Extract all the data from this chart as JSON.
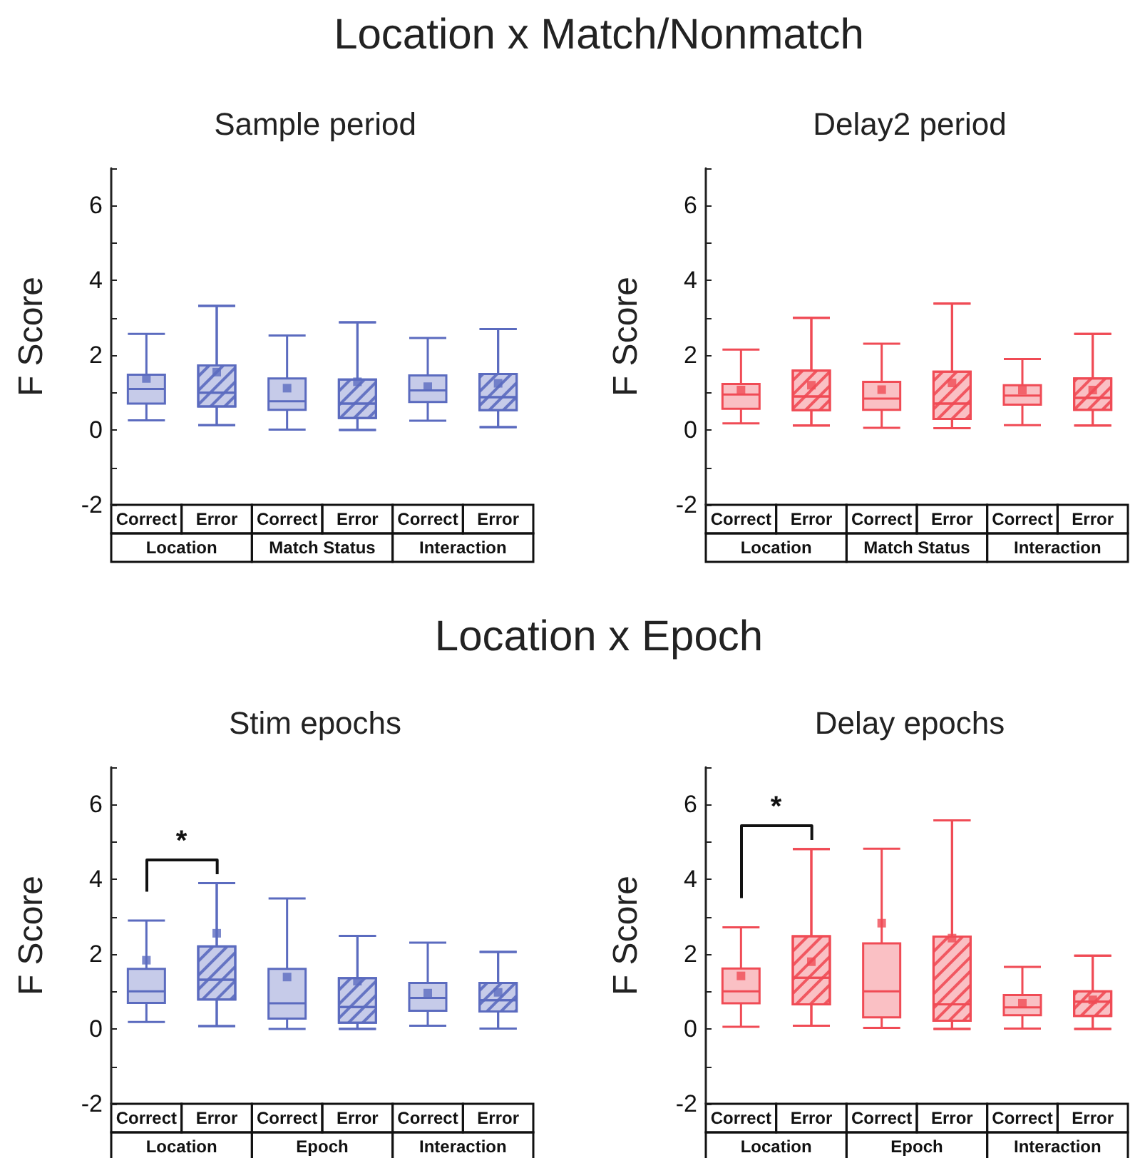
{
  "chart_data": [
    {
      "type": "box",
      "title": "Location x Match/Nonmatch",
      "subtitle": "Sample period",
      "ylabel": "F Score",
      "categories": [
        "Correct",
        "Error",
        "Correct",
        "Error",
        "Correct",
        "Error"
      ],
      "annotations": [
        "Location",
        "Match Status",
        "Interaction"
      ],
      "ylim": [
        -2,
        7
      ],
      "yticks": [
        -2,
        0,
        2,
        4,
        6
      ],
      "marker": "square",
      "series": [
        {
          "color": "#5b6bbf",
          "boxes": [
            {
              "low": 0.26,
              "q1": 0.71,
              "median": 1.1,
              "q3": 1.48,
              "high": 2.57,
              "mean": 1.38
            },
            null,
            {
              "low": 0.01,
              "q1": 0.54,
              "median": 0.77,
              "q3": 1.38,
              "high": 2.53,
              "mean": 1.12
            },
            null,
            {
              "low": 0.25,
              "q1": 0.75,
              "median": 1.06,
              "q3": 1.46,
              "high": 2.46,
              "mean": 1.16
            },
            null
          ]
        },
        {
          "color": "#5b6bbf",
          "boxes": [
            null,
            {
              "low": 0.13,
              "q1": 0.63,
              "median": 1.0,
              "q3": 1.73,
              "high": 3.32,
              "mean": 1.55
            },
            null,
            {
              "low": 0,
              "q1": 0.32,
              "median": 0.71,
              "q3": 1.35,
              "high": 2.88,
              "mean": 1.29
            },
            null,
            {
              "low": 0.08,
              "q1": 0.53,
              "median": 0.88,
              "q3": 1.5,
              "high": 2.7,
              "mean": 1.25
            }
          ]
        }
      ]
    },
    {
      "type": "box",
      "subtitle": "Delay2 period",
      "ylabel": "F Score",
      "categories": [
        "Correct",
        "Error",
        "Correct",
        "Error",
        "Correct",
        "Error"
      ],
      "annotations": [
        "Location",
        "Match Status",
        "Interaction"
      ],
      "ylim": [
        -2,
        7
      ],
      "yticks": [
        -2,
        0,
        2,
        4,
        6
      ],
      "marker": "square",
      "series": [
        {
          "color": "#f04b55",
          "boxes": [
            {
              "low": 0.18,
              "q1": 0.57,
              "median": 0.95,
              "q3": 1.23,
              "high": 2.15,
              "mean": 1.07
            },
            null,
            {
              "low": 0.06,
              "q1": 0.54,
              "median": 0.84,
              "q3": 1.29,
              "high": 2.31,
              "mean": 1.08
            },
            null,
            {
              "low": 0.13,
              "q1": 0.68,
              "median": 0.92,
              "q3": 1.2,
              "high": 1.9,
              "mean": 1.07
            },
            null
          ]
        },
        {
          "color": "#f04b55",
          "boxes": [
            null,
            {
              "low": 0.12,
              "q1": 0.53,
              "median": 0.9,
              "q3": 1.59,
              "high": 3.0,
              "mean": 1.2
            },
            null,
            {
              "low": 0.05,
              "q1": 0.3,
              "median": 0.71,
              "q3": 1.56,
              "high": 3.38,
              "mean": 1.26
            },
            null,
            {
              "low": 0.12,
              "q1": 0.54,
              "median": 0.86,
              "q3": 1.38,
              "high": 2.57,
              "mean": 1.07
            }
          ]
        }
      ]
    },
    {
      "type": "box",
      "title": "Location x Epoch",
      "subtitle": "Stim epochs",
      "ylabel": "F Score",
      "categories": [
        "Correct",
        "Error",
        "Correct",
        "Error",
        "Correct",
        "Error"
      ],
      "annotations": [
        "Location",
        "Epoch",
        "Interaction",
        "*"
      ],
      "ylim": [
        -2,
        7
      ],
      "yticks": [
        -2,
        0,
        2,
        4,
        6
      ],
      "marker": "square",
      "series": [
        {
          "color": "#5b6bbf",
          "boxes": [
            {
              "low": 0.19,
              "q1": 0.7,
              "median": 1.01,
              "q3": 1.61,
              "high": 2.9,
              "mean": 1.84
            },
            null,
            {
              "low": 0,
              "q1": 0.28,
              "median": 0.69,
              "q3": 1.61,
              "high": 3.49,
              "mean": 1.39
            },
            null,
            {
              "low": 0.09,
              "q1": 0.49,
              "median": 0.83,
              "q3": 1.23,
              "high": 2.31,
              "mean": 0.96
            },
            null
          ]
        },
        {
          "color": "#5b6bbf",
          "boxes": [
            null,
            {
              "low": 0.08,
              "q1": 0.79,
              "median": 1.32,
              "q3": 2.21,
              "high": 3.9,
              "mean": 2.56
            },
            null,
            {
              "low": 0,
              "q1": 0.17,
              "median": 0.59,
              "q3": 1.36,
              "high": 2.49,
              "mean": 1.28
            },
            null,
            {
              "low": 0.01,
              "q1": 0.47,
              "median": 0.77,
              "q3": 1.23,
              "high": 2.06,
              "mean": 0.98
            }
          ]
        }
      ]
    },
    {
      "type": "box",
      "subtitle": "Delay epochs",
      "ylabel": "F Score",
      "categories": [
        "Correct",
        "Error",
        "Correct",
        "Error",
        "Correct",
        "Error"
      ],
      "annotations": [
        "Location",
        "Epoch",
        "Interaction",
        "*"
      ],
      "ylim": [
        -2,
        7
      ],
      "yticks": [
        -2,
        0,
        2,
        4,
        6
      ],
      "marker": "square",
      "series": [
        {
          "color": "#f04b55",
          "boxes": [
            {
              "low": 0.06,
              "q1": 0.69,
              "median": 1.01,
              "q3": 1.62,
              "high": 2.72,
              "mean": 1.42
            },
            null,
            {
              "low": 0.03,
              "q1": 0.31,
              "median": 1.01,
              "q3": 2.29,
              "high": 4.82,
              "mean": 2.83
            },
            null,
            {
              "low": 0.01,
              "q1": 0.37,
              "median": 0.58,
              "q3": 0.91,
              "high": 1.66,
              "mean": 0.69
            },
            null
          ]
        },
        {
          "color": "#f04b55",
          "boxes": [
            null,
            {
              "low": 0.09,
              "q1": 0.66,
              "median": 1.37,
              "q3": 2.48,
              "high": 4.81,
              "mean": 1.8
            },
            null,
            {
              "low": 0,
              "q1": 0.22,
              "median": 0.66,
              "q3": 2.47,
              "high": 5.58,
              "mean": 2.43
            },
            null,
            {
              "low": 0,
              "q1": 0.35,
              "median": 0.73,
              "q3": 1.01,
              "high": 1.96,
              "mean": 0.78
            }
          ]
        }
      ]
    }
  ]
}
